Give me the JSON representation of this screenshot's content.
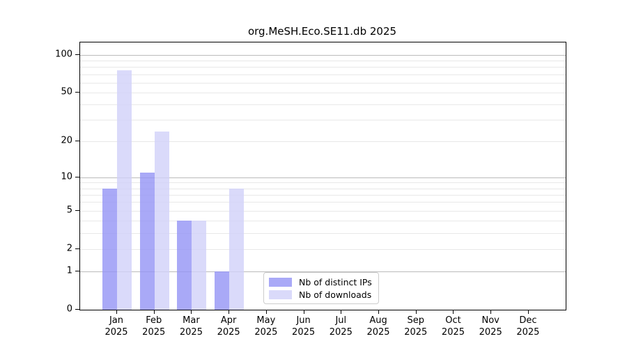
{
  "chart_data": {
    "type": "bar",
    "title": "org.MeSH.Eco.SE11.db 2025",
    "categories": [
      "Jan",
      "Feb",
      "Mar",
      "Apr",
      "May",
      "Jun",
      "Jul",
      "Aug",
      "Sep",
      "Oct",
      "Nov",
      "Dec"
    ],
    "x_year_label": "2025",
    "series": [
      {
        "name": "Nb of distinct IPs",
        "color": "rgba(148,148,245,0.8)",
        "values": [
          8,
          11,
          4,
          1,
          0,
          0,
          0,
          0,
          0,
          0,
          0,
          0
        ]
      },
      {
        "name": "Nb of downloads",
        "color": "rgba(209,209,249,0.8)",
        "values": [
          75,
          24,
          4,
          8,
          0,
          0,
          0,
          0,
          0,
          0,
          0,
          0
        ]
      }
    ],
    "y_axis": {
      "scale": "log1p",
      "tick_values": [
        0,
        1,
        2,
        5,
        10,
        20,
        50,
        100
      ],
      "major_gridlines": [
        1,
        10,
        100
      ],
      "minor_gridlines": [
        2,
        3,
        4,
        5,
        6,
        7,
        8,
        9,
        20,
        30,
        40,
        50,
        60,
        70,
        80,
        90
      ],
      "range": [
        0,
        125
      ]
    },
    "legend_position": "lower center",
    "grid": true,
    "colors": {
      "major_grid": "#bbbbbb",
      "minor_grid": "#e8e8e8",
      "axis": "#000000",
      "legend_border": "#cccccc"
    }
  }
}
